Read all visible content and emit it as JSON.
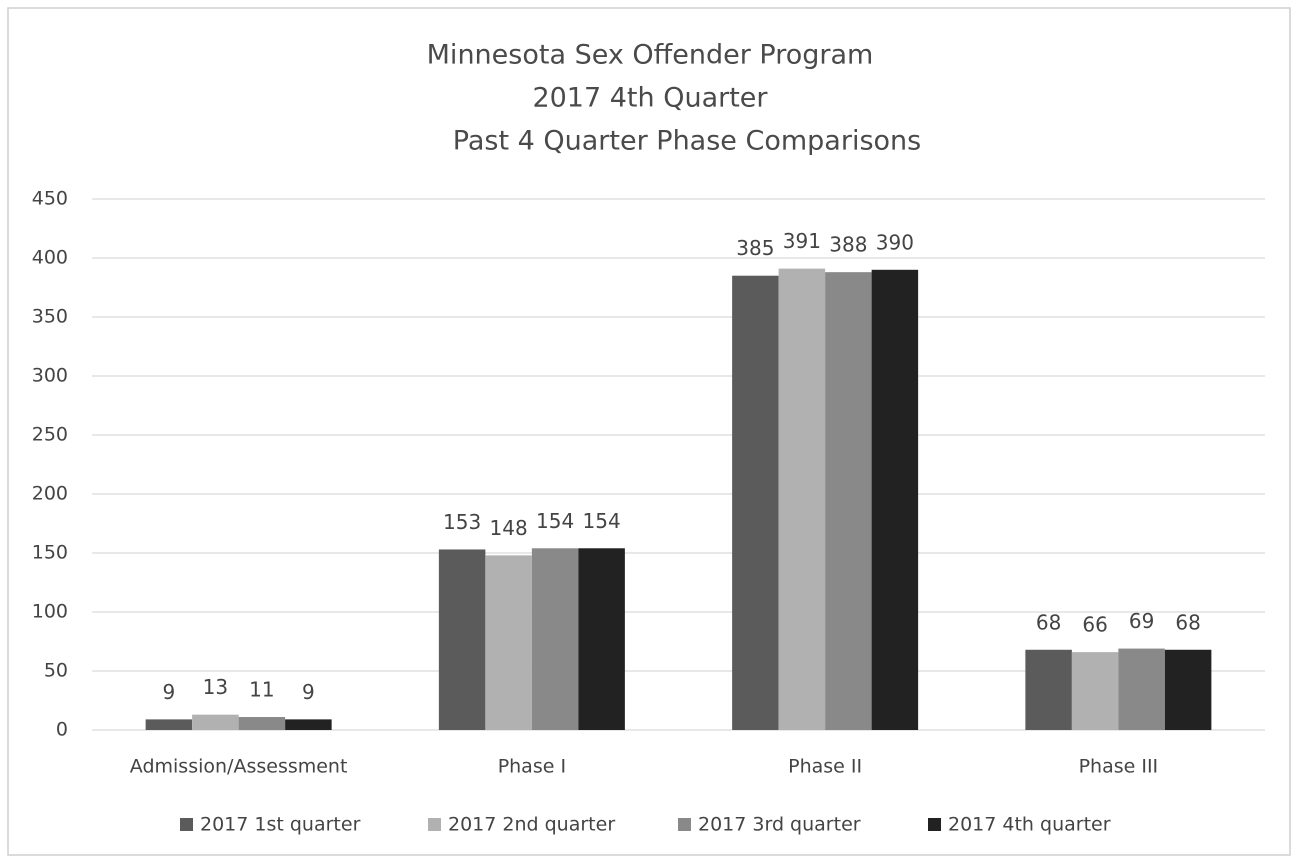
{
  "chart_data": {
    "type": "bar",
    "title": [
      "Minnesota Sex Offender Program",
      "2017 4th Quarter",
      "Past 4 Quarter Phase Comparisons"
    ],
    "categories": [
      "Admission/Assessment",
      "Phase I",
      "Phase II",
      "Phase III"
    ],
    "series": [
      {
        "name": "2017 1st quarter",
        "color": "#5b5b5b",
        "values": [
          9,
          153,
          385,
          68
        ]
      },
      {
        "name": "2017 2nd quarter",
        "color": "#b1b1b1",
        "values": [
          13,
          148,
          391,
          66
        ]
      },
      {
        "name": "2017 3rd quarter",
        "color": "#898989",
        "values": [
          11,
          154,
          388,
          69
        ]
      },
      {
        "name": "2017 4th quarter",
        "color": "#222222",
        "values": [
          9,
          154,
          390,
          68
        ]
      }
    ],
    "ylim": [
      0,
      450
    ],
    "yticks": [
      0,
      50,
      100,
      150,
      200,
      250,
      300,
      350,
      400,
      450
    ],
    "grid": true,
    "legend": "bottom",
    "data_labels": true
  }
}
